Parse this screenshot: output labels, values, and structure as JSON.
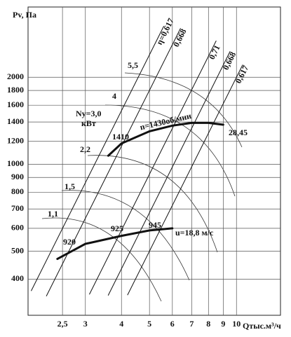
{
  "chart_data": {
    "type": "line",
    "y_label": "Pv, Па",
    "x_label": "Qтыс.м³/ч",
    "xscale": "log",
    "yscale": "log",
    "grid": true,
    "xlim": [
      1.9,
      14.2
    ],
    "ylim": [
      300,
      3500
    ],
    "xticks": [
      {
        "value": 2.5,
        "label": "2,5"
      },
      3,
      4,
      5,
      6,
      7,
      8,
      9,
      10
    ],
    "yticks": [
      400,
      500,
      600,
      700,
      800,
      900,
      1000,
      1200,
      1400,
      1600,
      1800,
      2000
    ],
    "series": [
      {
        "name": "n=1430об/мин",
        "color": "#111",
        "width": 3,
        "x": [
          3.6,
          4,
          5,
          6,
          7,
          8,
          9
        ],
        "values": [
          1070,
          1180,
          1300,
          1360,
          1390,
          1390,
          1370
        ]
      },
      {
        "name": "u=18,8 м/с",
        "color": "#111",
        "width": 3,
        "x": [
          2.4,
          3,
          4,
          5,
          6
        ],
        "values": [
          470,
          530,
          565,
          590,
          600
        ]
      },
      {
        "name": "η=0,617",
        "color": "#111",
        "width": 1,
        "x": [
          1.95,
          5.6
        ],
        "values": [
          365,
          3000
        ]
      },
      {
        "name": "0,668",
        "color": "#111",
        "width": 1,
        "x": [
          2.2,
          6.4
        ],
        "values": [
          350,
          2950
        ]
      },
      {
        "name": "0,71",
        "color": "#111",
        "width": 1,
        "x": [
          3.1,
          8.5
        ],
        "values": [
          355,
          2670
        ]
      },
      {
        "name": "0,668",
        "color": "#111",
        "width": 1,
        "x": [
          3.6,
          9.5
        ],
        "values": [
          352,
          2455
        ]
      },
      {
        "name": "0,617",
        "color": "#111",
        "width": 1,
        "x": [
          4.2,
          10.5
        ],
        "values": [
          353,
          2205
        ]
      }
    ],
    "annotations": [
      "5,5",
      "4",
      "Ny=3,0",
      "кВт",
      "2,2",
      "1,5",
      "1,1",
      "1410",
      "28,45",
      "920",
      "925",
      "945"
    ]
  }
}
